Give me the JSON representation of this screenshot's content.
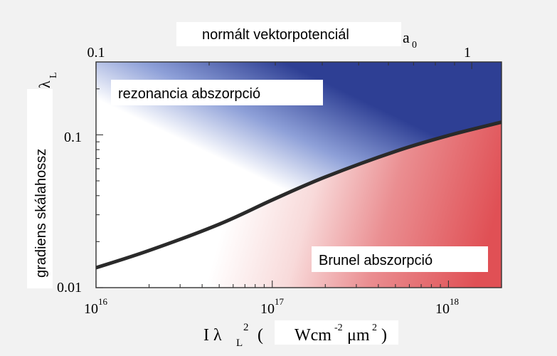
{
  "chart_data": {
    "type": "heatmap",
    "top_axis": {
      "label": "normált vektorpotenciál",
      "symbol": "a",
      "symbol_sub": "0",
      "scale": "log",
      "ticks": [
        "0.1",
        "1"
      ]
    },
    "y_axis": {
      "label": "gradiens skálahossz",
      "symbol": "λ",
      "symbol_sub": "L",
      "scale": "log",
      "range": [
        0.01,
        0.3
      ],
      "ticks": [
        "0.1",
        "0.01"
      ]
    },
    "x_axis": {
      "label_prefix": "I λ",
      "label_sub": "L",
      "label_sup": "2",
      "unit_open": "(",
      "unit_text": "Wcm",
      "unit_sup1": "-2",
      "unit_mid": "μm",
      "unit_sup2": "2",
      "unit_close": ")",
      "scale": "log",
      "range": [
        1e+16,
        2e+18
      ],
      "ticks": [
        {
          "base": "10",
          "exp": "16"
        },
        {
          "base": "10",
          "exp": "17"
        },
        {
          "base": "10",
          "exp": "18"
        }
      ]
    },
    "regions": [
      {
        "label": "rezonancia abszorpció",
        "color": "#2e3f94"
      },
      {
        "label": "Brunel abszorpció",
        "color": "#e05055"
      }
    ],
    "boundary_curve": {
      "color": "#2a2a2a",
      "x": [
        1e+16,
        2e+16,
        5e+16,
        1e+17,
        2e+17,
        5e+17,
        1e+18,
        2e+18
      ],
      "y": [
        0.0135,
        0.0175,
        0.026,
        0.0375,
        0.053,
        0.078,
        0.099,
        0.121
      ]
    }
  }
}
